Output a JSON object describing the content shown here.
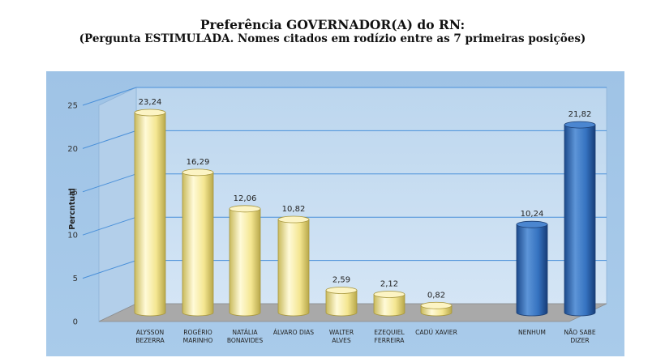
{
  "chart_data": {
    "type": "bar",
    "title": "Preferência GOVERNADOR(A) do RN:",
    "subtitle": "(Pergunta ESTIMULADA. Nomes citados em rodízio entre as 7 primeiras posições)",
    "ylabel": "Percntual",
    "xlabel": "",
    "ylim": [
      0,
      25
    ],
    "yticks": [
      "0",
      "5",
      "10",
      "15",
      "20",
      "25"
    ],
    "grid": true,
    "categories": [
      [
        "ALYSSON",
        "BEZERRA"
      ],
      [
        "ROGÉRIO",
        "MARINHO"
      ],
      [
        "NATÁLIA",
        "BONAVIDES"
      ],
      [
        "ÁLVARO DIAS"
      ],
      [
        "WALTER",
        "ALVES"
      ],
      [
        "EZEQUIEL",
        "FERREIRA"
      ],
      [
        "CADÚ XAVIER"
      ],
      [
        "NENHUM"
      ],
      [
        "NÃO SABE",
        "DIZER"
      ]
    ],
    "values": [
      23.24,
      16.29,
      12.06,
      10.82,
      2.59,
      2.12,
      0.82,
      10.24,
      21.82
    ],
    "value_labels": [
      "23,24",
      "16,29",
      "12,06",
      "10,82",
      "2,59",
      "2,12",
      "0,82",
      "10,24",
      "21,82"
    ],
    "bar_colors": [
      "yellow",
      "yellow",
      "yellow",
      "yellow",
      "yellow",
      "yellow",
      "yellow",
      "blue",
      "blue"
    ],
    "colors": {
      "background": "#a4c6e6",
      "wall": "#c9def1",
      "floor": "#a9a9a9",
      "yellow_bar": "#f7eca0",
      "blue_bar": "#2f67b2",
      "gridline": "#4a90d9"
    }
  }
}
